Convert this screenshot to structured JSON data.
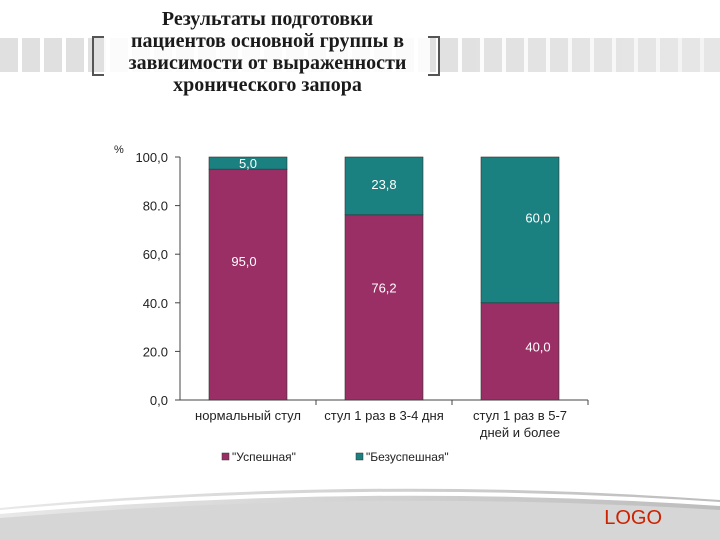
{
  "title": {
    "lines": [
      "Результаты подготовки",
      "пациентов основной группы в",
      "зависимости от выраженности",
      "хронического запора"
    ]
  },
  "chart_data": {
    "type": "bar",
    "stacked": true,
    "y_unit": "%",
    "ylim": [
      0,
      100
    ],
    "yticks": [
      "0,0",
      "20.0",
      "40.0",
      "60,0",
      "80.0",
      "100,0"
    ],
    "ytick_values": [
      0,
      20,
      40,
      60,
      80,
      100
    ],
    "categories": [
      [
        "нормальный стул"
      ],
      [
        "стул 1 раз в 3-4 дня"
      ],
      [
        "стул 1 раз в 5-7",
        "дней и более"
      ]
    ],
    "series": [
      {
        "name": "\"Успешная\"",
        "values": [
          95.0,
          76.2,
          40.0
        ],
        "labels": [
          "95,0",
          "76,2",
          "40,0"
        ],
        "color": "#9a2f66"
      },
      {
        "name": "\"Безуспешная\"",
        "values": [
          5.0,
          23.8,
          60.0
        ],
        "labels": [
          "5,0",
          "23,8",
          "60,0"
        ],
        "color": "#1a8080"
      }
    ],
    "legend_position": "bottom",
    "grid": false
  },
  "logo": {
    "text": "LOGO",
    "color": "#cc2200"
  }
}
